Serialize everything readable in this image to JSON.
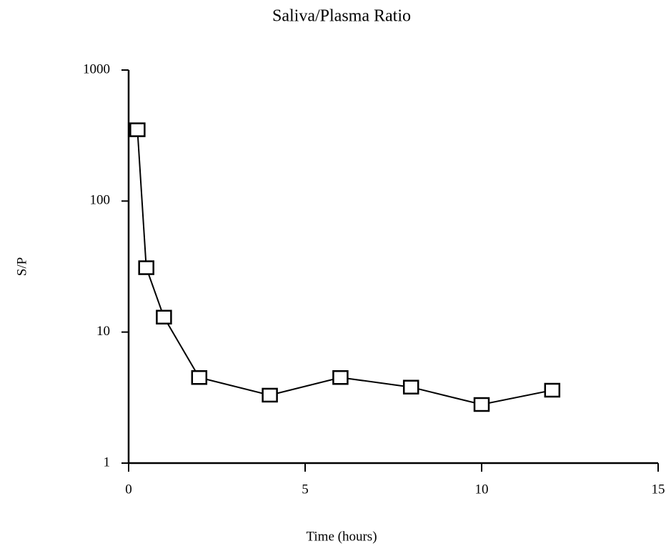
{
  "chart_data": {
    "type": "line",
    "title": "Saliva/Plasma Ratio",
    "x_label": "Time (hours)",
    "y_label": "S/P",
    "x": [
      0.25,
      0.5,
      1,
      2,
      4,
      6,
      8,
      10,
      12
    ],
    "series": [
      {
        "values": [
          350,
          31,
          13,
          4.5,
          3.3,
          4.5,
          3.8,
          2.8,
          3.6
        ],
        "color": "#000000",
        "marker": "square"
      }
    ],
    "xlim": [
      0,
      15
    ],
    "xticks": [
      0,
      5,
      10,
      15
    ],
    "ylim": [
      1,
      1000
    ],
    "yticks": [
      1,
      10,
      100,
      1000
    ],
    "yscale": "log",
    "grid": false
  }
}
